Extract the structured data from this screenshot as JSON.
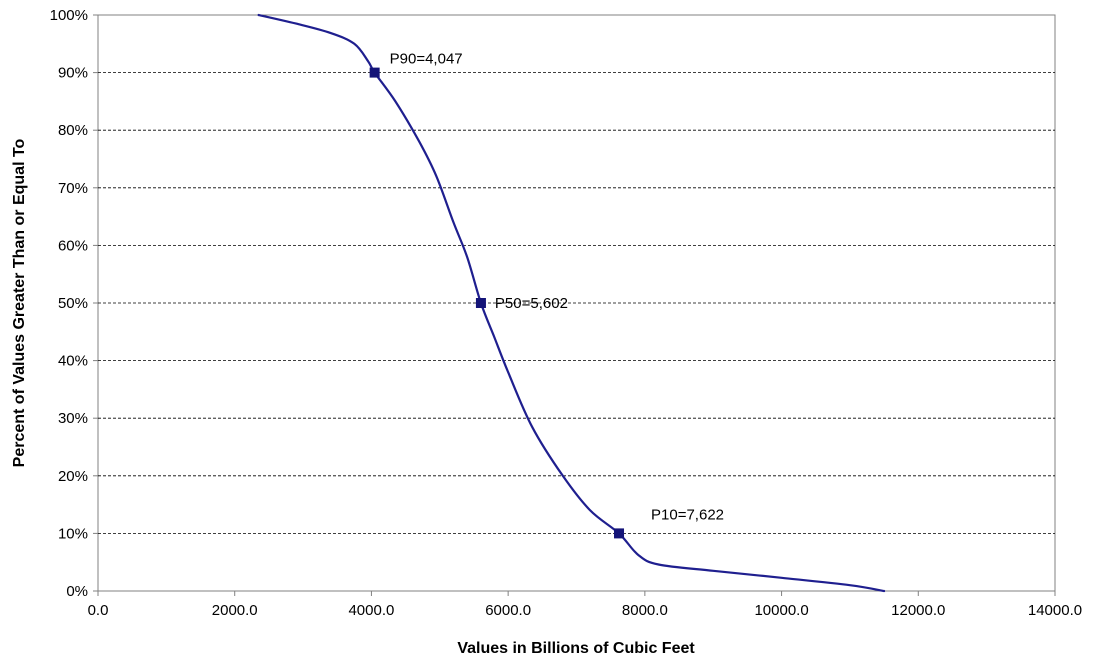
{
  "chart_data": {
    "type": "line",
    "title": "",
    "xlabel": "Values in Billions of Cubic Feet",
    "ylabel": "Percent of Values Greater Than or Equal To",
    "xlim": [
      0,
      14000
    ],
    "ylim": [
      0,
      100
    ],
    "x_ticks": [
      "0.0",
      "2000.0",
      "4000.0",
      "6000.0",
      "8000.0",
      "10000.0",
      "12000.0",
      "14000.0"
    ],
    "y_ticks": [
      "0%",
      "10%",
      "20%",
      "30%",
      "40%",
      "50%",
      "60%",
      "70%",
      "80%",
      "90%",
      "100%"
    ],
    "grid": "horizontal dashed",
    "series": [
      {
        "points": [
          [
            2350,
            100
          ],
          [
            2900,
            98.5
          ],
          [
            3400,
            96.9
          ],
          [
            3750,
            95
          ],
          [
            3950,
            92
          ],
          [
            4047,
            90
          ],
          [
            4350,
            85
          ],
          [
            4700,
            78
          ],
          [
            4950,
            72
          ],
          [
            5200,
            64
          ],
          [
            5400,
            58
          ],
          [
            5602,
            50
          ],
          [
            5800,
            44
          ],
          [
            6000,
            38
          ],
          [
            6350,
            28.5
          ],
          [
            6800,
            20
          ],
          [
            7200,
            14
          ],
          [
            7622,
            10
          ],
          [
            7900,
            6.3
          ],
          [
            8200,
            4.6
          ],
          [
            9000,
            3.5
          ],
          [
            10000,
            2.3
          ],
          [
            11000,
            1
          ],
          [
            11500,
            0
          ]
        ]
      }
    ],
    "markers": [
      {
        "x": 4047,
        "y": 90,
        "label": "P90=4,047"
      },
      {
        "x": 5602,
        "y": 50,
        "label": "P50=5,602"
      },
      {
        "x": 7622,
        "y": 10,
        "label": "P10=7,622"
      }
    ],
    "colors": {
      "line": "#1f1f8f",
      "marker": "#141478",
      "grid": "#000000",
      "axis": "#808080"
    }
  }
}
